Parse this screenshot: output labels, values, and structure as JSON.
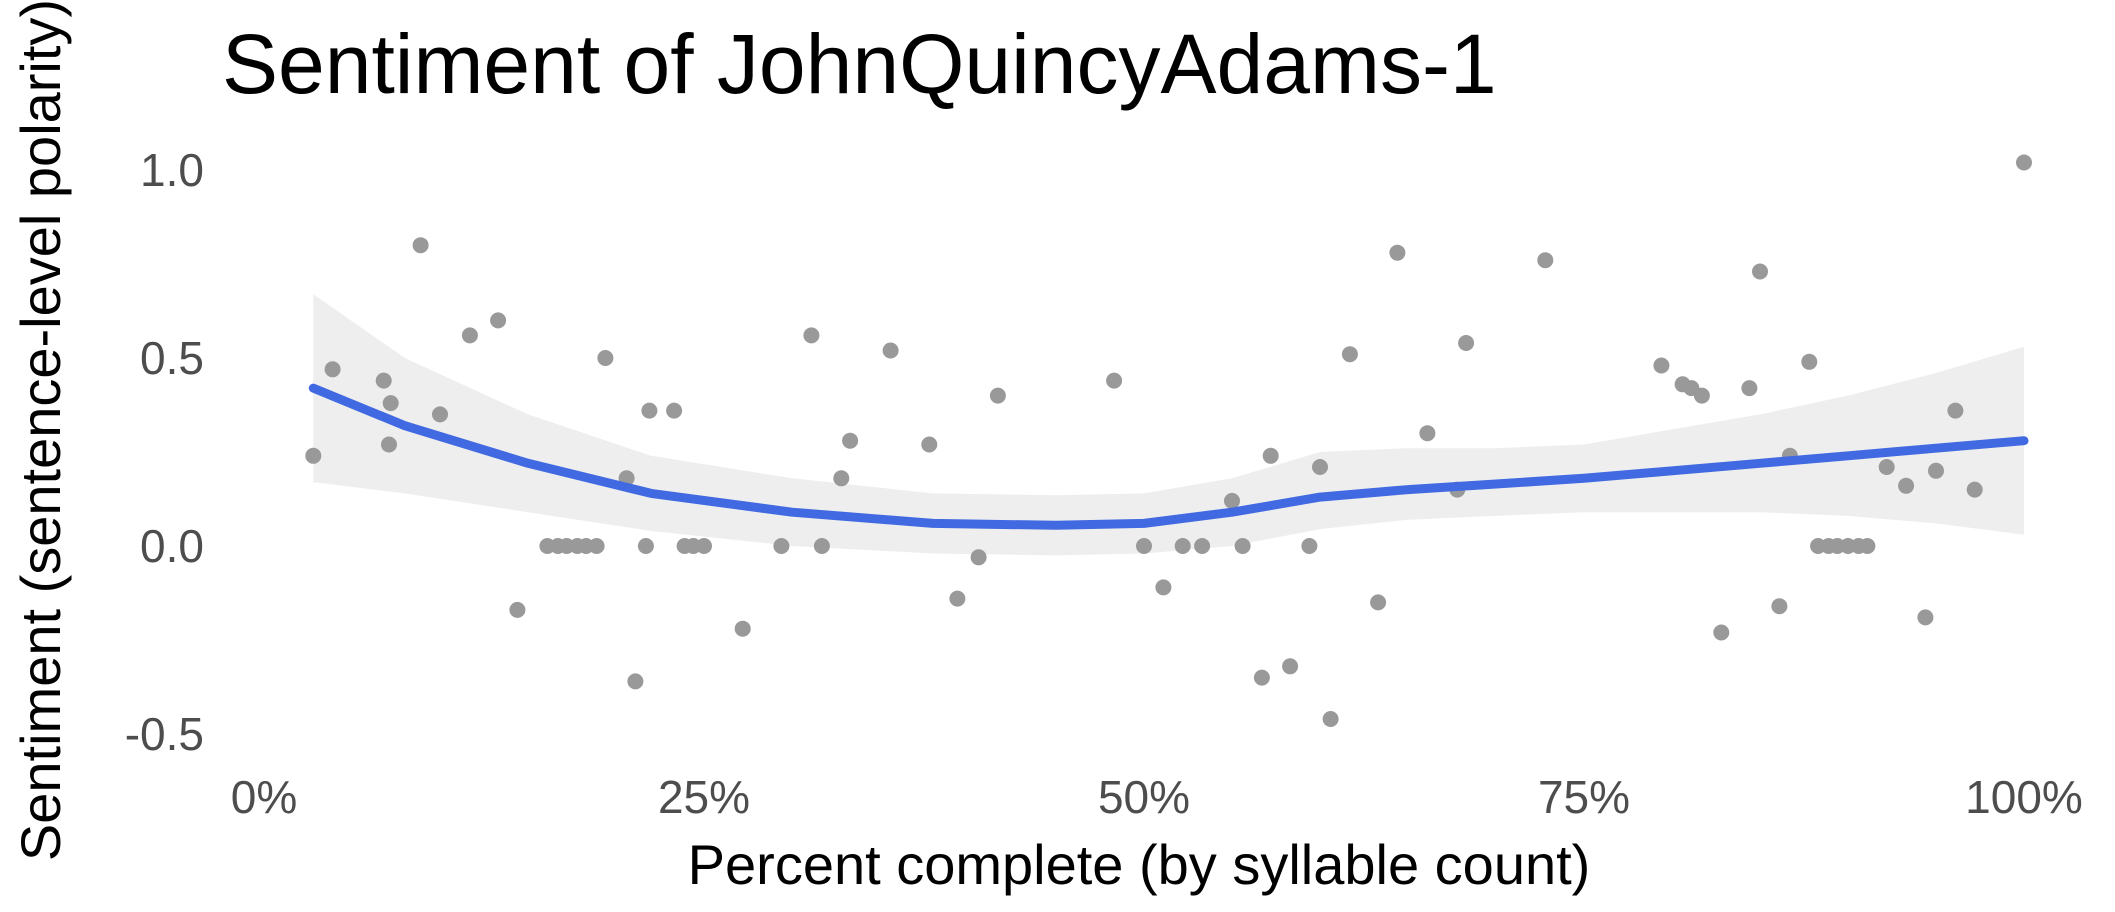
{
  "chart_data": {
    "type": "scatter",
    "title": "Sentiment of JohnQuincyAdams-1",
    "xlabel": "Percent complete (by syllable count)",
    "ylabel": "Sentiment (sentence-level polarity)",
    "xlim": [
      0,
      1
    ],
    "ylim": [
      -0.55,
      1.05
    ],
    "x_ticks": [
      0,
      0.25,
      0.5,
      0.75,
      1.0
    ],
    "x_tick_labels": [
      "0%",
      "25%",
      "50%",
      "75%",
      "100%"
    ],
    "y_ticks": [
      -0.5,
      0,
      0.5,
      1.0
    ],
    "y_tick_labels": [
      "-0.5",
      "0.0",
      "0.5",
      "1.0"
    ],
    "grid": false,
    "colors": {
      "points": "#999999",
      "smooth_line": "#4169e1",
      "confidence_band": "#ebebeb"
    },
    "series": [
      {
        "kind": "points",
        "points": [
          [
            0.028,
            0.24
          ],
          [
            0.039,
            0.47
          ],
          [
            0.068,
            0.44
          ],
          [
            0.071,
            0.27
          ],
          [
            0.072,
            0.38
          ],
          [
            0.089,
            0.8
          ],
          [
            0.1,
            0.35
          ],
          [
            0.117,
            0.56
          ],
          [
            0.133,
            0.6
          ],
          [
            0.144,
            -0.17
          ],
          [
            0.161,
            0.0
          ],
          [
            0.167,
            0.0
          ],
          [
            0.172,
            0.0
          ],
          [
            0.178,
            0.0
          ],
          [
            0.183,
            0.0
          ],
          [
            0.189,
            0.0
          ],
          [
            0.194,
            0.5
          ],
          [
            0.206,
            0.18
          ],
          [
            0.211,
            -0.36
          ],
          [
            0.217,
            0.0
          ],
          [
            0.219,
            0.36
          ],
          [
            0.233,
            0.36
          ],
          [
            0.239,
            0.0
          ],
          [
            0.244,
            0.0
          ],
          [
            0.25,
            0.0
          ],
          [
            0.272,
            -0.22
          ],
          [
            0.294,
            0.0
          ],
          [
            0.311,
            0.56
          ],
          [
            0.317,
            0.0
          ],
          [
            0.328,
            0.18
          ],
          [
            0.333,
            0.28
          ],
          [
            0.356,
            0.52
          ],
          [
            0.378,
            0.27
          ],
          [
            0.394,
            -0.14
          ],
          [
            0.406,
            -0.03
          ],
          [
            0.417,
            0.4
          ],
          [
            0.483,
            0.44
          ],
          [
            0.5,
            0.0
          ],
          [
            0.511,
            -0.11
          ],
          [
            0.522,
            0.0
          ],
          [
            0.533,
            0.0
          ],
          [
            0.55,
            0.12
          ],
          [
            0.556,
            0.0
          ],
          [
            0.567,
            -0.35
          ],
          [
            0.572,
            0.24
          ],
          [
            0.583,
            -0.32
          ],
          [
            0.594,
            0.0
          ],
          [
            0.6,
            0.21
          ],
          [
            0.606,
            -0.46
          ],
          [
            0.617,
            0.51
          ],
          [
            0.633,
            -0.15
          ],
          [
            0.644,
            0.78
          ],
          [
            0.661,
            0.3
          ],
          [
            0.678,
            0.15
          ],
          [
            0.683,
            0.54
          ],
          [
            0.728,
            0.76
          ],
          [
            0.794,
            0.48
          ],
          [
            0.806,
            0.43
          ],
          [
            0.811,
            0.42
          ],
          [
            0.817,
            0.4
          ],
          [
            0.828,
            -0.23
          ],
          [
            0.844,
            0.42
          ],
          [
            0.85,
            0.73
          ],
          [
            0.861,
            -0.16
          ],
          [
            0.867,
            0.24
          ],
          [
            0.878,
            0.49
          ],
          [
            0.883,
            0.0
          ],
          [
            0.889,
            0.0
          ],
          [
            0.894,
            0.0
          ],
          [
            0.9,
            0.0
          ],
          [
            0.906,
            0.0
          ],
          [
            0.911,
            0.0
          ],
          [
            0.922,
            0.21
          ],
          [
            0.933,
            0.16
          ],
          [
            0.944,
            -0.19
          ],
          [
            0.95,
            0.2
          ],
          [
            0.961,
            0.36
          ],
          [
            0.972,
            0.15
          ],
          [
            1.0,
            1.02
          ]
        ]
      },
      {
        "kind": "smooth",
        "x": [
          0.028,
          0.08,
          0.15,
          0.22,
          0.3,
          0.38,
          0.45,
          0.5,
          0.55,
          0.6,
          0.65,
          0.7,
          0.75,
          0.8,
          0.85,
          0.9,
          0.95,
          1.0
        ],
        "y": [
          0.42,
          0.32,
          0.22,
          0.14,
          0.09,
          0.06,
          0.055,
          0.06,
          0.09,
          0.13,
          0.15,
          0.165,
          0.18,
          0.2,
          0.22,
          0.24,
          0.26,
          0.28
        ],
        "lower": [
          0.17,
          0.14,
          0.09,
          0.04,
          0.0,
          -0.02,
          -0.025,
          -0.02,
          0.0,
          0.045,
          0.07,
          0.08,
          0.09,
          0.09,
          0.09,
          0.08,
          0.06,
          0.03
        ],
        "upper": [
          0.67,
          0.5,
          0.35,
          0.24,
          0.18,
          0.14,
          0.135,
          0.14,
          0.18,
          0.25,
          0.26,
          0.26,
          0.27,
          0.31,
          0.35,
          0.4,
          0.46,
          0.53
        ]
      }
    ]
  }
}
